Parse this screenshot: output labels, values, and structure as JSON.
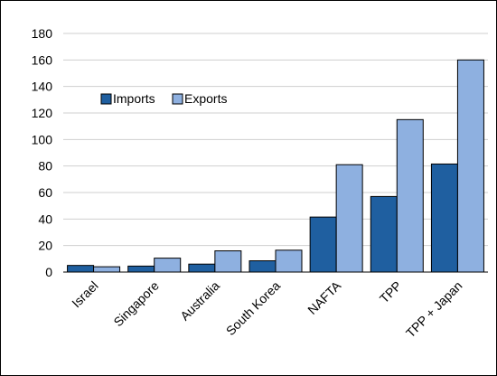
{
  "chart_data": {
    "type": "bar",
    "categories": [
      "Israel",
      "Singapore",
      "Australia",
      "South Korea",
      "NAFTA",
      "TPP",
      "TPP + Japan"
    ],
    "series": [
      {
        "name": "Imports",
        "values": [
          5,
          4.5,
          6,
          8.5,
          41.5,
          57,
          81.5
        ],
        "color": "#1F5FA0"
      },
      {
        "name": "Exports",
        "values": [
          4,
          10.5,
          16,
          16.5,
          81,
          115,
          160
        ],
        "color": "#8EB0E0"
      }
    ],
    "yticks": [
      0,
      20,
      40,
      60,
      80,
      100,
      120,
      140,
      160,
      180
    ],
    "ylim": [
      0,
      180
    ],
    "grid": true,
    "legend": "upper-left",
    "title": "",
    "xlabel": "",
    "ylabel": ""
  }
}
